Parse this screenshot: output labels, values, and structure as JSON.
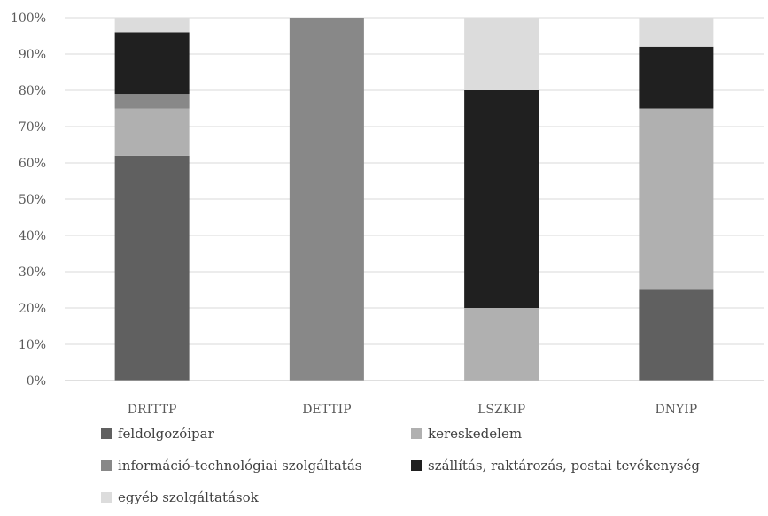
{
  "chart_data": {
    "type": "bar",
    "stacked": true,
    "percent": true,
    "categories": [
      "DRITTP",
      "DETTIP",
      "LSZKIP",
      "DNYIP"
    ],
    "series": [
      {
        "name": "feldolgozóipar",
        "color": "#606060",
        "values": [
          62,
          0,
          0,
          25
        ]
      },
      {
        "name": "kereskedelem",
        "color": "#b0b0b0",
        "values": [
          13,
          0,
          20,
          50
        ]
      },
      {
        "name": "információ-technológiai szolgáltatás",
        "color": "#888888",
        "values": [
          4,
          100,
          0,
          0
        ]
      },
      {
        "name": "szállítás, raktározás, postai tevékenység",
        "color": "#202020",
        "values": [
          17,
          0,
          60,
          17
        ]
      },
      {
        "name": "egyéb szolgáltatások",
        "color": "#dcdcdc",
        "values": [
          4,
          0,
          20,
          8
        ]
      }
    ],
    "yticks": [
      "0%",
      "10%",
      "20%",
      "30%",
      "40%",
      "50%",
      "60%",
      "70%",
      "80%",
      "90%",
      "100%"
    ],
    "ylim": [
      0,
      100
    ],
    "grid": true,
    "legend_position": "bottom"
  }
}
